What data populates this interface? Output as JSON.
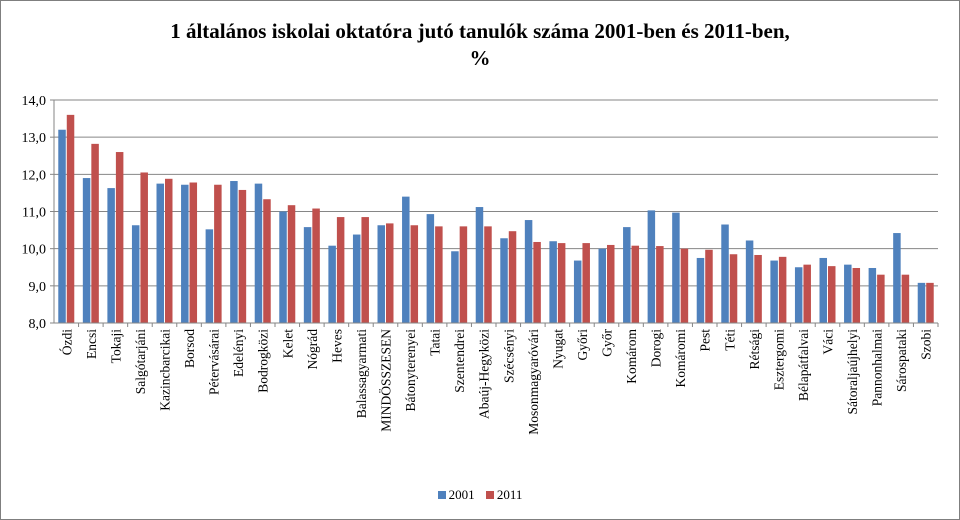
{
  "chart_data": {
    "type": "bar",
    "title_line1": "1 általános iskolai oktatóra jutó tanulók száma 2001-ben és 2011-ben,",
    "title_line2": "%",
    "xlabel": "",
    "ylabel": "",
    "ylim": [
      8.0,
      14.0
    ],
    "yticks": [
      "8,0",
      "9,0",
      "10,0",
      "11,0",
      "12,0",
      "13,0",
      "14,0"
    ],
    "ytick_values": [
      8,
      9,
      10,
      11,
      12,
      13,
      14
    ],
    "grid": true,
    "legend_position": "bottom",
    "categories": [
      "Ózdi",
      "Encsi",
      "Tokaji",
      "Salgótarjáni",
      "Kazincbarcikai",
      "Borsod",
      "Pétervásárai",
      "Edelényi",
      "Bodrogközi",
      "Kelet",
      "Nógrád",
      "Heves",
      "Balassagyarmati",
      "MINDÖSSZESEN",
      "Bátonyterenyei",
      "Tatai",
      "Szentendrei",
      "Abaúj-Hegyközi",
      "Szécsényi",
      "Mosonmagyaróvári",
      "Nyugat",
      "Győri",
      "Győr",
      "Komárom",
      "Dorogi",
      "Komáromi",
      "Pest",
      "Téti",
      "Rétsági",
      "Esztergomi",
      "Bélapátfalvai",
      "Váci",
      "Sátoraljaújhelyi",
      "Pannonhalmai",
      "Sárospataki",
      "Szobi"
    ],
    "series": [
      {
        "name": "2001",
        "color": "#4f81bd",
        "values": [
          13.2,
          11.9,
          11.63,
          10.63,
          11.75,
          11.72,
          10.52,
          11.82,
          11.75,
          11.0,
          10.58,
          10.08,
          10.38,
          10.63,
          11.4,
          10.93,
          9.93,
          11.12,
          10.28,
          10.77,
          10.2,
          9.68,
          10.0,
          10.58,
          11.03,
          10.97,
          9.75,
          10.65,
          10.22,
          9.68,
          9.5,
          9.75,
          9.57,
          9.48,
          10.42,
          9.08
        ]
      },
      {
        "name": "2011",
        "color": "#c0504d",
        "values": [
          13.6,
          12.82,
          12.6,
          12.05,
          11.88,
          11.78,
          11.72,
          11.58,
          11.33,
          11.17,
          11.08,
          10.85,
          10.85,
          10.68,
          10.63,
          10.6,
          10.6,
          10.6,
          10.47,
          10.18,
          10.15,
          10.15,
          10.1,
          10.08,
          10.07,
          10.0,
          9.97,
          9.85,
          9.83,
          9.78,
          9.57,
          9.53,
          9.48,
          9.3,
          9.3,
          9.08
        ]
      }
    ]
  }
}
